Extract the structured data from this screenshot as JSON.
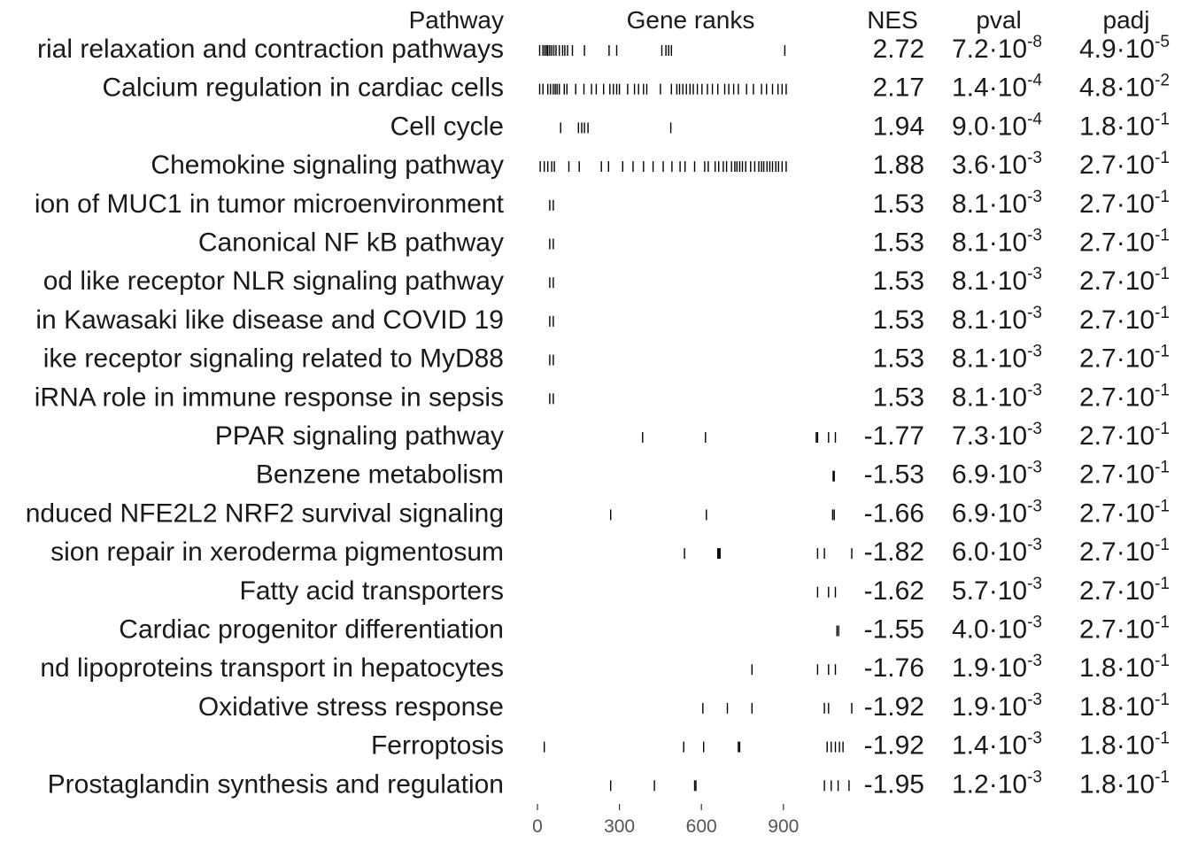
{
  "colors": {
    "text": "#1a1a1a",
    "ticks": "#000000",
    "axis_text": "#555555",
    "background": "#ffffff"
  },
  "headers": {
    "pathway": "Pathway",
    "gene_ranks": "Gene ranks",
    "nes": "NES",
    "pval": "pval",
    "padj": "padj"
  },
  "chart_data": {
    "type": "table",
    "xlim": [
      0,
      1150
    ],
    "x_ticks": [
      0,
      300,
      600,
      900
    ],
    "grid": false,
    "legend": "none",
    "columns": [
      "Pathway",
      "Gene ranks",
      "NES",
      "pval",
      "padj"
    ],
    "rows": [
      {
        "pathway": "rial relaxation and contraction pathways",
        "nes": "2.72",
        "pval": {
          "m": "7.2",
          "e": "-8"
        },
        "padj": {
          "m": "4.9",
          "e": "-5"
        },
        "ranks": [
          8,
          20,
          27,
          33,
          38,
          45,
          52,
          60,
          68,
          80,
          92,
          100,
          110,
          128,
          172,
          262,
          290,
          455,
          470,
          480,
          490,
          905
        ]
      },
      {
        "pathway": "Calcium regulation in cardiac cells",
        "nes": "2.17",
        "pval": {
          "m": "1.4",
          "e": "-4"
        },
        "padj": {
          "m": "4.8",
          "e": "-2"
        },
        "ranks": [
          8,
          20,
          38,
          48,
          58,
          65,
          72,
          80,
          98,
          108,
          140,
          170,
          198,
          215,
          242,
          265,
          278,
          290,
          300,
          330,
          355,
          370,
          388,
          400,
          450,
          490,
          510,
          520,
          532,
          545,
          558,
          570,
          585,
          602,
          622,
          640,
          660,
          685,
          700,
          718,
          735,
          765,
          790,
          820,
          838,
          860,
          880,
          895,
          910
        ]
      },
      {
        "pathway": "Cell cycle",
        "nes": "1.94",
        "pval": {
          "m": "9.0",
          "e": "-4"
        },
        "padj": {
          "m": "1.8",
          "e": "-1"
        },
        "ranks": [
          85,
          150,
          162,
          172,
          185,
          488
        ]
      },
      {
        "pathway": "Chemokine signaling pathway",
        "nes": "1.88",
        "pval": {
          "m": "3.6",
          "e": "-3"
        },
        "padj": {
          "m": "2.7",
          "e": "-1"
        },
        "ranks": [
          10,
          25,
          38,
          52,
          62,
          115,
          153,
          234,
          260,
          312,
          350,
          388,
          423,
          460,
          492,
          522,
          540,
          575,
          612,
          625,
          650,
          663,
          680,
          692,
          710,
          722,
          730,
          740,
          750,
          762,
          780,
          795,
          810,
          820,
          828,
          840,
          850,
          860,
          872,
          882,
          895,
          910
        ]
      },
      {
        "pathway": "ion of MUC1 in tumor microenvironment",
        "nes": "1.53",
        "pval": {
          "m": "8.1",
          "e": "-3"
        },
        "padj": {
          "m": "2.7",
          "e": "-1"
        },
        "ranks": [
          45,
          58
        ]
      },
      {
        "pathway": "Canonical NF kB pathway",
        "nes": "1.53",
        "pval": {
          "m": "8.1",
          "e": "-3"
        },
        "padj": {
          "m": "2.7",
          "e": "-1"
        },
        "ranks": [
          45,
          58
        ]
      },
      {
        "pathway": "od like receptor NLR signaling pathway",
        "nes": "1.53",
        "pval": {
          "m": "8.1",
          "e": "-3"
        },
        "padj": {
          "m": "2.7",
          "e": "-1"
        },
        "ranks": [
          45,
          58
        ]
      },
      {
        "pathway": "in Kawasaki like disease and COVID 19",
        "nes": "1.53",
        "pval": {
          "m": "8.1",
          "e": "-3"
        },
        "padj": {
          "m": "2.7",
          "e": "-1"
        },
        "ranks": [
          45,
          58
        ]
      },
      {
        "pathway": "ike receptor signaling related to MyD88",
        "nes": "1.53",
        "pval": {
          "m": "8.1",
          "e": "-3"
        },
        "padj": {
          "m": "2.7",
          "e": "-1"
        },
        "ranks": [
          45,
          58
        ]
      },
      {
        "pathway": "iRNA role in immune response in sepsis",
        "nes": "1.53",
        "pval": {
          "m": "8.1",
          "e": "-3"
        },
        "padj": {
          "m": "2.7",
          "e": "-1"
        },
        "ranks": [
          45,
          58
        ]
      },
      {
        "pathway": "PPAR signaling pathway",
        "nes": "-1.77",
        "pval": {
          "m": "7.3",
          "e": "-3"
        },
        "padj": {
          "m": "2.7",
          "e": "-1"
        },
        "ranks": [
          385,
          615,
          1020,
          1025,
          1065,
          1090
        ]
      },
      {
        "pathway": "Benzene metabolism",
        "nes": "-1.53",
        "pval": {
          "m": "6.9",
          "e": "-3"
        },
        "padj": {
          "m": "2.7",
          "e": "-1"
        },
        "ranks": [
          1082,
          1086
        ]
      },
      {
        "pathway": "nduced NFE2L2 NRF2 survival signaling",
        "nes": "-1.66",
        "pval": {
          "m": "6.9",
          "e": "-3"
        },
        "padj": {
          "m": "2.7",
          "e": "-1"
        },
        "ranks": [
          268,
          618,
          1080,
          1086
        ]
      },
      {
        "pathway": "sion repair in xeroderma pigmentosum",
        "nes": "-1.82",
        "pval": {
          "m": "6.0",
          "e": "-3"
        },
        "padj": {
          "m": "2.7",
          "e": "-1"
        },
        "ranks": [
          538,
          660,
          664,
          668,
          1025,
          1050,
          1150
        ]
      },
      {
        "pathway": "Fatty acid transporters",
        "nes": "-1.62",
        "pval": {
          "m": "5.7",
          "e": "-3"
        },
        "padj": {
          "m": "2.7",
          "e": "-1"
        },
        "ranks": [
          1025,
          1065,
          1090
        ]
      },
      {
        "pathway": "Cardiac progenitor differentiation",
        "nes": "-1.55",
        "pval": {
          "m": "4.0",
          "e": "-3"
        },
        "padj": {
          "m": "2.7",
          "e": "-1"
        },
        "ranks": [
          1096,
          1102
        ]
      },
      {
        "pathway": "nd lipoproteins transport in hepatocytes",
        "nes": "-1.76",
        "pval": {
          "m": "1.9",
          "e": "-3"
        },
        "padj": {
          "m": "1.8",
          "e": "-1"
        },
        "ranks": [
          785,
          1025,
          1065,
          1090
        ]
      },
      {
        "pathway": "Oxidative stress response",
        "nes": "-1.92",
        "pval": {
          "m": "1.9",
          "e": "-3"
        },
        "padj": {
          "m": "1.8",
          "e": "-1"
        },
        "ranks": [
          605,
          695,
          785,
          1050,
          1065,
          1150
        ]
      },
      {
        "pathway": "Ferroptosis",
        "nes": "-1.92",
        "pval": {
          "m": "1.4",
          "e": "-3"
        },
        "padj": {
          "m": "1.8",
          "e": "-1"
        },
        "ranks": [
          25,
          535,
          608,
          735,
          740,
          1060,
          1075,
          1090,
          1105,
          1118
        ]
      },
      {
        "pathway": "Prostaglandin synthesis and regulation",
        "nes": "-1.95",
        "pval": {
          "m": "1.2",
          "e": "-3"
        },
        "padj": {
          "m": "1.8",
          "e": "-1"
        },
        "ranks": [
          268,
          428,
          575,
          580,
          1050,
          1075,
          1100,
          1140
        ]
      }
    ]
  }
}
